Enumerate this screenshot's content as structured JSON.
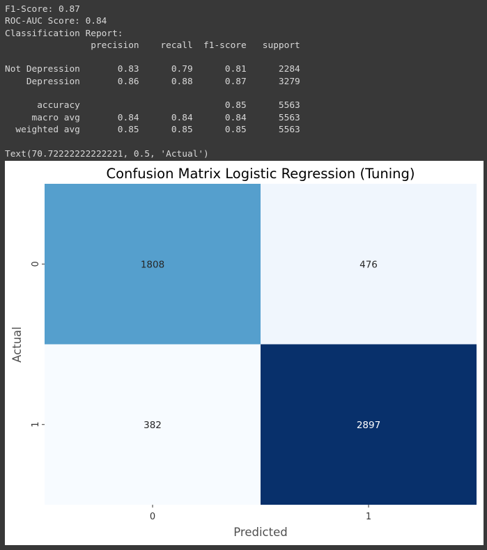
{
  "console": {
    "lines": [
      "F1-Score: 0.87",
      "ROC-AUC Score: 0.84",
      "Classification Report:",
      "                precision    recall  f1-score   support",
      "",
      "Not Depression       0.83      0.79      0.81      2284",
      "    Depression       0.86      0.88      0.87      3279",
      "",
      "      accuracy                           0.85      5563",
      "     macro avg       0.84      0.84      0.84      5563",
      "  weighted avg       0.85      0.85      0.85      5563",
      "",
      "Text(70.72222222222221, 0.5, 'Actual')"
    ]
  },
  "chart_data": {
    "type": "heatmap",
    "title": "Confusion Matrix Logistic Regression (Tuning)",
    "xlabel": "Predicted",
    "ylabel": "Actual",
    "x_categories": [
      "0",
      "1"
    ],
    "y_categories": [
      "0",
      "1"
    ],
    "values": [
      [
        1808,
        476
      ],
      [
        382,
        2897
      ]
    ],
    "colormap": "Blues",
    "colorbar": false,
    "colors": {
      "low": "#f7fbff",
      "high": "#08306b"
    }
  }
}
